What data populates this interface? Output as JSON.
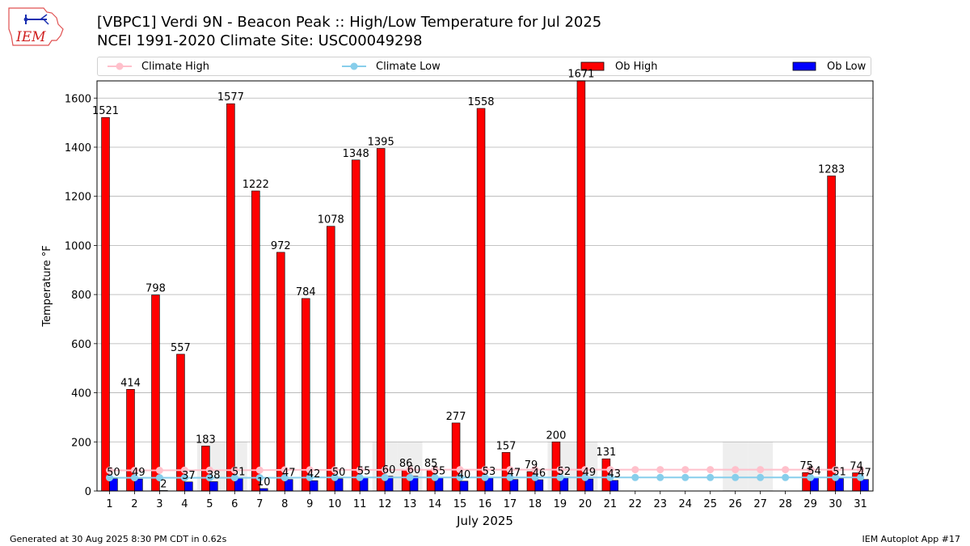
{
  "header": {
    "logo_text": "IEM",
    "title_line1": "[VBPC1] Verdi 9N - Beacon Peak :: High/Low Temperature for Jul 2025",
    "title_line2": "NCEI 1991-2020 Climate Site: USC00049298"
  },
  "legend": {
    "items": [
      {
        "label": "Climate High",
        "color": "#ffc0cb",
        "kind": "line"
      },
      {
        "label": "Climate Low",
        "color": "#87ceeb",
        "kind": "line"
      },
      {
        "label": "Ob High",
        "color": "#ff0000",
        "kind": "bar"
      },
      {
        "label": "Ob Low",
        "color": "#0000ff",
        "kind": "bar"
      }
    ]
  },
  "chart_data": {
    "type": "bar",
    "xlabel": "July 2025",
    "ylabel": "Temperature °F",
    "ylim": [
      0,
      1670
    ],
    "yticks": [
      0,
      200,
      400,
      600,
      800,
      1000,
      1200,
      1400,
      1600
    ],
    "grid": true,
    "categories": [
      "1",
      "2",
      "3",
      "4",
      "5",
      "6",
      "7",
      "8",
      "9",
      "10",
      "11",
      "12",
      "13",
      "14",
      "15",
      "16",
      "17",
      "18",
      "19",
      "20",
      "21",
      "22",
      "23",
      "24",
      "25",
      "26",
      "27",
      "28",
      "29",
      "30",
      "31"
    ],
    "shaded_days": [
      "5",
      "6",
      "12",
      "13",
      "19",
      "20",
      "26",
      "27"
    ],
    "series": [
      {
        "name": "Ob High",
        "color": "#ff0000",
        "values": [
          1521,
          414,
          798,
          557,
          183,
          1577,
          1222,
          972,
          784,
          1078,
          1348,
          1395,
          86,
          85,
          277,
          1558,
          157,
          79,
          200,
          1671,
          131,
          null,
          null,
          null,
          null,
          null,
          null,
          null,
          75,
          1283,
          74
        ],
        "labels": [
          "1521",
          "414",
          "798",
          "557",
          "183",
          "1577",
          "1222",
          "972",
          "784",
          "1078",
          "1348",
          "1395",
          "86",
          "85",
          "277",
          "1558",
          "157",
          "79",
          "200",
          "1671",
          "131",
          null,
          null,
          null,
          null,
          null,
          null,
          null,
          "75",
          "1283",
          "74"
        ]
      },
      {
        "name": "Ob Low",
        "color": "#0000ff",
        "values": [
          50,
          49,
          2,
          37,
          38,
          51,
          10,
          47,
          42,
          50,
          55,
          60,
          60,
          55,
          40,
          53,
          47,
          46,
          52,
          49,
          43,
          null,
          null,
          null,
          null,
          null,
          null,
          null,
          54,
          51,
          47
        ],
        "labels": [
          "50",
          "49",
          "2",
          "37",
          "38",
          "51",
          "10",
          "47",
          "42",
          "50",
          "55",
          "60",
          "60",
          "55",
          "40",
          "53",
          "47",
          "46",
          "52",
          "49",
          "43",
          null,
          null,
          null,
          null,
          null,
          null,
          null,
          "54",
          "51",
          "47"
        ]
      },
      {
        "name": "Climate High",
        "color": "#ffc0cb",
        "values": [
          84,
          84,
          84,
          85,
          85,
          85,
          85,
          86,
          86,
          86,
          86,
          86,
          86,
          87,
          87,
          87,
          87,
          87,
          87,
          87,
          87,
          87,
          87,
          87,
          87,
          87,
          87,
          87,
          87,
          87,
          87
        ]
      },
      {
        "name": "Climate Low",
        "color": "#87ceeb",
        "values": [
          54,
          54,
          54,
          54,
          54,
          54,
          54,
          54,
          55,
          55,
          55,
          55,
          55,
          55,
          55,
          55,
          55,
          55,
          55,
          55,
          55,
          55,
          55,
          55,
          55,
          55,
          55,
          55,
          55,
          55,
          55
        ]
      }
    ]
  },
  "footer": {
    "left": "Generated at 30 Aug 2025 8:30 PM CDT in 0.62s",
    "right": "IEM Autoplot App #17"
  }
}
